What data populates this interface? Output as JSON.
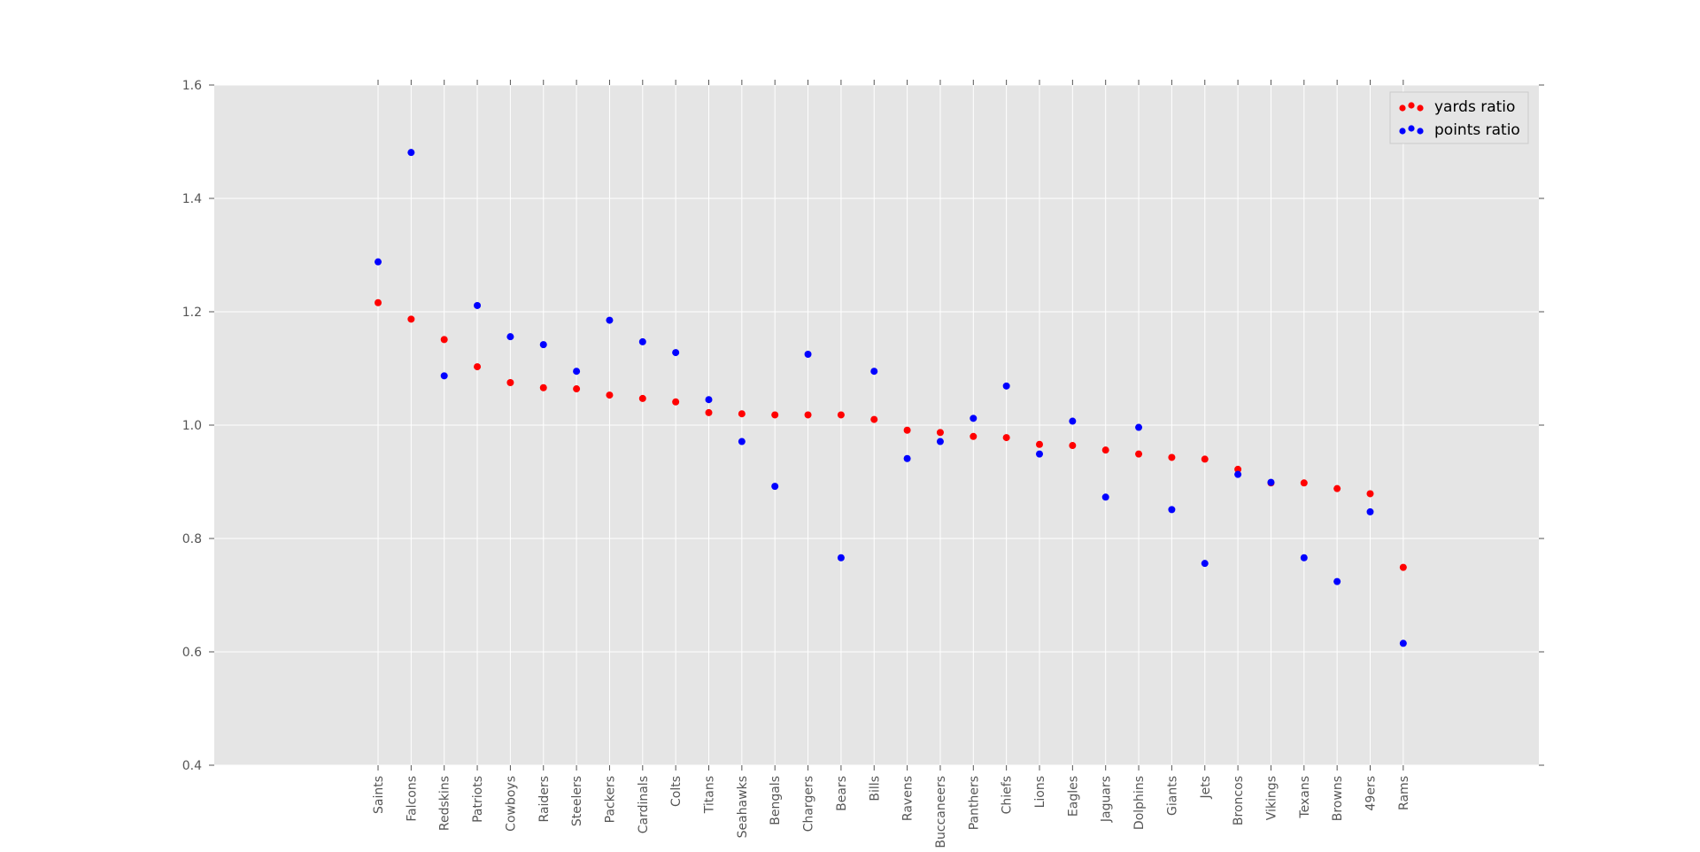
{
  "chart_data": {
    "type": "scatter",
    "title": "",
    "xlabel": "",
    "ylabel": "",
    "ylim": [
      0.4,
      1.6
    ],
    "yticks": [
      "0.4",
      "0.6",
      "0.8",
      "1.0",
      "1.2",
      "1.4",
      "1.6"
    ],
    "grid": true,
    "legend_position": "top-right",
    "categories": [
      "Saints",
      "Falcons",
      "Redskins",
      "Patriots",
      "Cowboys",
      "Raiders",
      "Steelers",
      "Packers",
      "Cardinals",
      "Colts",
      "Titans",
      "Seahawks",
      "Bengals",
      "Chargers",
      "Bears",
      "Bills",
      "Ravens",
      "Buccaneers",
      "Panthers",
      "Chiefs",
      "Lions",
      "Eagles",
      "Jaguars",
      "Dolphins",
      "Giants",
      "Jets",
      "Broncos",
      "Vikings",
      "Texans",
      "Browns",
      "49ers",
      "Rams"
    ],
    "series": [
      {
        "name": "yards ratio",
        "color": "#ff0000",
        "values": [
          1.216,
          1.187,
          1.151,
          1.103,
          1.075,
          1.066,
          1.064,
          1.053,
          1.047,
          1.041,
          1.022,
          1.02,
          1.018,
          1.018,
          1.018,
          1.01,
          0.991,
          0.987,
          0.98,
          0.978,
          0.966,
          0.964,
          0.956,
          0.949,
          0.943,
          0.94,
          0.922,
          0.898,
          0.898,
          0.888,
          0.879,
          0.749
        ]
      },
      {
        "name": "points ratio",
        "color": "#0000ff",
        "values": [
          1.288,
          1.481,
          1.087,
          1.211,
          1.156,
          1.142,
          1.095,
          1.185,
          1.147,
          1.128,
          1.045,
          0.971,
          0.892,
          1.125,
          0.766,
          1.095,
          0.941,
          0.971,
          1.012,
          1.069,
          0.949,
          1.007,
          0.873,
          0.996,
          0.851,
          0.756,
          0.913,
          0.899,
          0.766,
          0.724,
          0.847,
          0.615
        ]
      }
    ]
  }
}
